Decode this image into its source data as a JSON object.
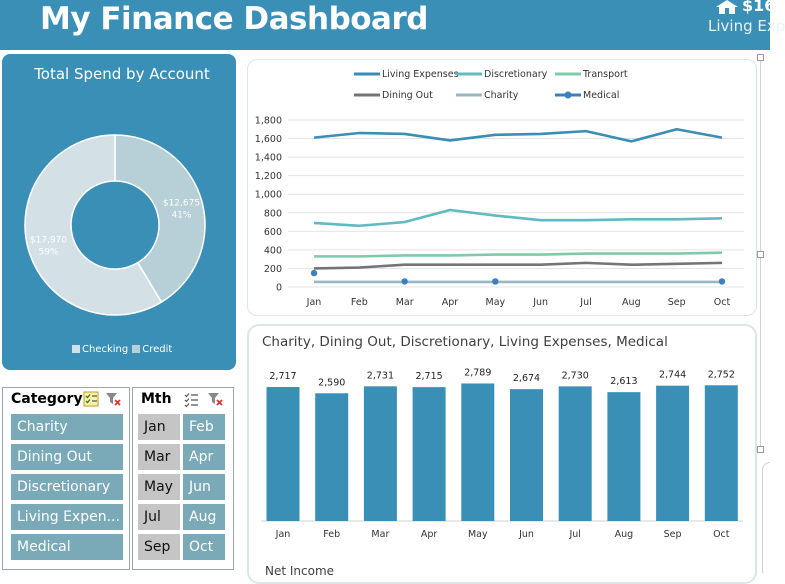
{
  "header": {
    "title": "My Finance Dashboard",
    "kpi_amount": "$16",
    "kpi_label": "Living Exp"
  },
  "donut": {
    "title": "Total Spend by Account",
    "legend": [
      "Checking",
      "Credit"
    ],
    "slices": [
      {
        "name": "Credit",
        "value": 12675,
        "label": "$12,675",
        "pct": "41%",
        "color": "#b7cfd6"
      },
      {
        "name": "Checking",
        "value": 17970,
        "label": "$17,970",
        "pct": "59%",
        "color": "#d3e1e6"
      }
    ]
  },
  "chart_data": [
    {
      "type": "line",
      "title": "",
      "categories": [
        "Jan",
        "Feb",
        "Mar",
        "Apr",
        "May",
        "Jun",
        "Jul",
        "Aug",
        "Sep",
        "Oct"
      ],
      "yticks": [
        "0",
        "200",
        "400",
        "600",
        "800",
        "1,000",
        "1,200",
        "1,400",
        "1,600",
        "1,800"
      ],
      "ylim": [
        0,
        1800
      ],
      "grid": true,
      "legend_position": "top",
      "series": [
        {
          "name": "Living Expenses",
          "color": "#3b8db5",
          "values": [
            1610,
            1660,
            1650,
            1580,
            1640,
            1650,
            1680,
            1570,
            1700,
            1610
          ]
        },
        {
          "name": "Discretionary",
          "color": "#5fbac2",
          "values": [
            690,
            660,
            700,
            830,
            770,
            720,
            720,
            730,
            730,
            740
          ]
        },
        {
          "name": "Transport",
          "color": "#7fcaa8",
          "values": [
            330,
            330,
            340,
            340,
            350,
            350,
            360,
            360,
            360,
            370
          ]
        },
        {
          "name": "Dining Out",
          "color": "#757575",
          "values": [
            200,
            210,
            240,
            240,
            240,
            240,
            260,
            240,
            250,
            260
          ]
        },
        {
          "name": "Charity",
          "color": "#9ab6c2",
          "values": [
            55,
            55,
            55,
            55,
            55,
            55,
            55,
            55,
            55,
            55
          ]
        },
        {
          "name": "Medical",
          "color": "#3b7fc0",
          "values": [
            150,
            null,
            60,
            null,
            60,
            null,
            null,
            null,
            null,
            60
          ],
          "markers": true
        }
      ]
    },
    {
      "type": "bar",
      "title": "Charity, Dining Out, Discretionary, Living Expenses, Medical",
      "categories": [
        "Jan",
        "Feb",
        "Mar",
        "Apr",
        "May",
        "Jun",
        "Jul",
        "Aug",
        "Sep",
        "Oct"
      ],
      "values": [
        2717,
        2590,
        2731,
        2715,
        2789,
        2674,
        2730,
        2613,
        2744,
        2752
      ],
      "labels": [
        "2,717",
        "2,590",
        "2,731",
        "2,715",
        "2,789",
        "2,674",
        "2,730",
        "2,613",
        "2,744",
        "2,752"
      ],
      "ylim": [
        0,
        2900
      ],
      "color": "#3a8fb6"
    }
  ],
  "bottom_chart": {
    "title": "Net Income"
  },
  "slicers": {
    "category": {
      "header": "Category",
      "items": [
        "Charity",
        "Dining Out",
        "Discretionary",
        "Living Expen...",
        "Medical"
      ]
    },
    "month": {
      "header": "Mth",
      "items": [
        {
          "label": "Jan",
          "selected": false
        },
        {
          "label": "Feb",
          "selected": true
        },
        {
          "label": "Mar",
          "selected": false
        },
        {
          "label": "Apr",
          "selected": true
        },
        {
          "label": "May",
          "selected": false
        },
        {
          "label": "Jun",
          "selected": true
        },
        {
          "label": "Jul",
          "selected": false
        },
        {
          "label": "Aug",
          "selected": true
        },
        {
          "label": "Sep",
          "selected": false
        },
        {
          "label": "Oct",
          "selected": true
        }
      ]
    }
  }
}
